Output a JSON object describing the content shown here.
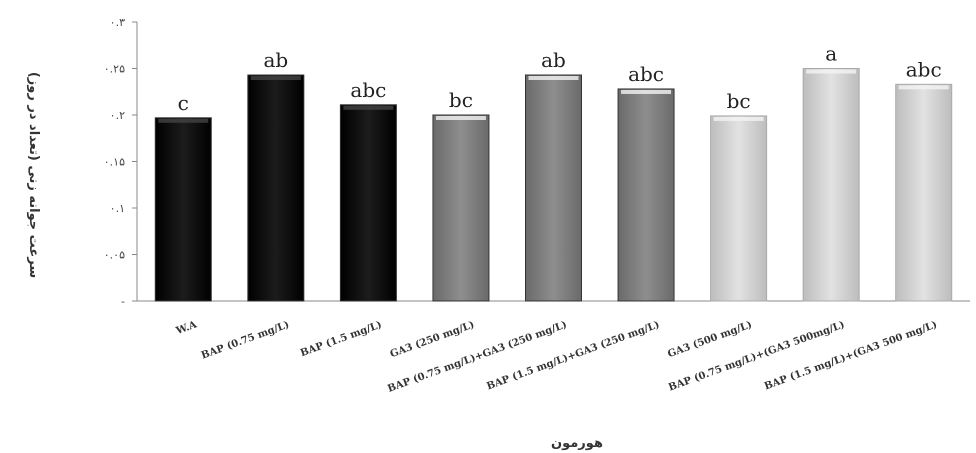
{
  "chart_data": {
    "type": "bar",
    "title": "",
    "xlabel": "هورمون",
    "ylabel": "سرعت جوانه زنی (تعداد در روز)",
    "ylim": [
      0,
      0.3
    ],
    "y_ticks": [
      0,
      0.05,
      0.1,
      0.15,
      0.2,
      0.25,
      0.3
    ],
    "y_tick_labels": [
      "-",
      "۰.۰۵",
      "۰.۱",
      "۰.۱۵",
      "۰.۲",
      "۰.۲۵",
      "۰.۳"
    ],
    "categories": [
      "W.A",
      "BAP (0.75 mg/L)",
      "BAP (1.5 mg/L)",
      "GA3 (250 mg/L)",
      "BAP (0.75 mg/L)+GA3 (250 mg/L)",
      "BAP (1.5 mg/L)+GA3 (250 mg/L)",
      "GA3 (500 mg/L)",
      "BAP (0.75 mg/L)+(GA3 500mg/L)",
      "BAP (1.5 mg/L)+(GA3 500 mg/L)"
    ],
    "values": [
      0.197,
      0.243,
      0.211,
      0.2,
      0.243,
      0.228,
      0.199,
      0.25,
      0.233
    ],
    "significance_letters": [
      "c",
      "ab",
      "abc",
      "bc",
      "ab",
      "abc",
      "bc",
      "a",
      "abc"
    ],
    "bar_groups": [
      "dark",
      "dark",
      "dark",
      "medium",
      "medium",
      "medium",
      "light",
      "light",
      "light"
    ],
    "group_colors": {
      "dark": "#111111",
      "medium": "#7a7a7a",
      "light": "#cfcfcf"
    },
    "grid": false,
    "legend": "none"
  }
}
